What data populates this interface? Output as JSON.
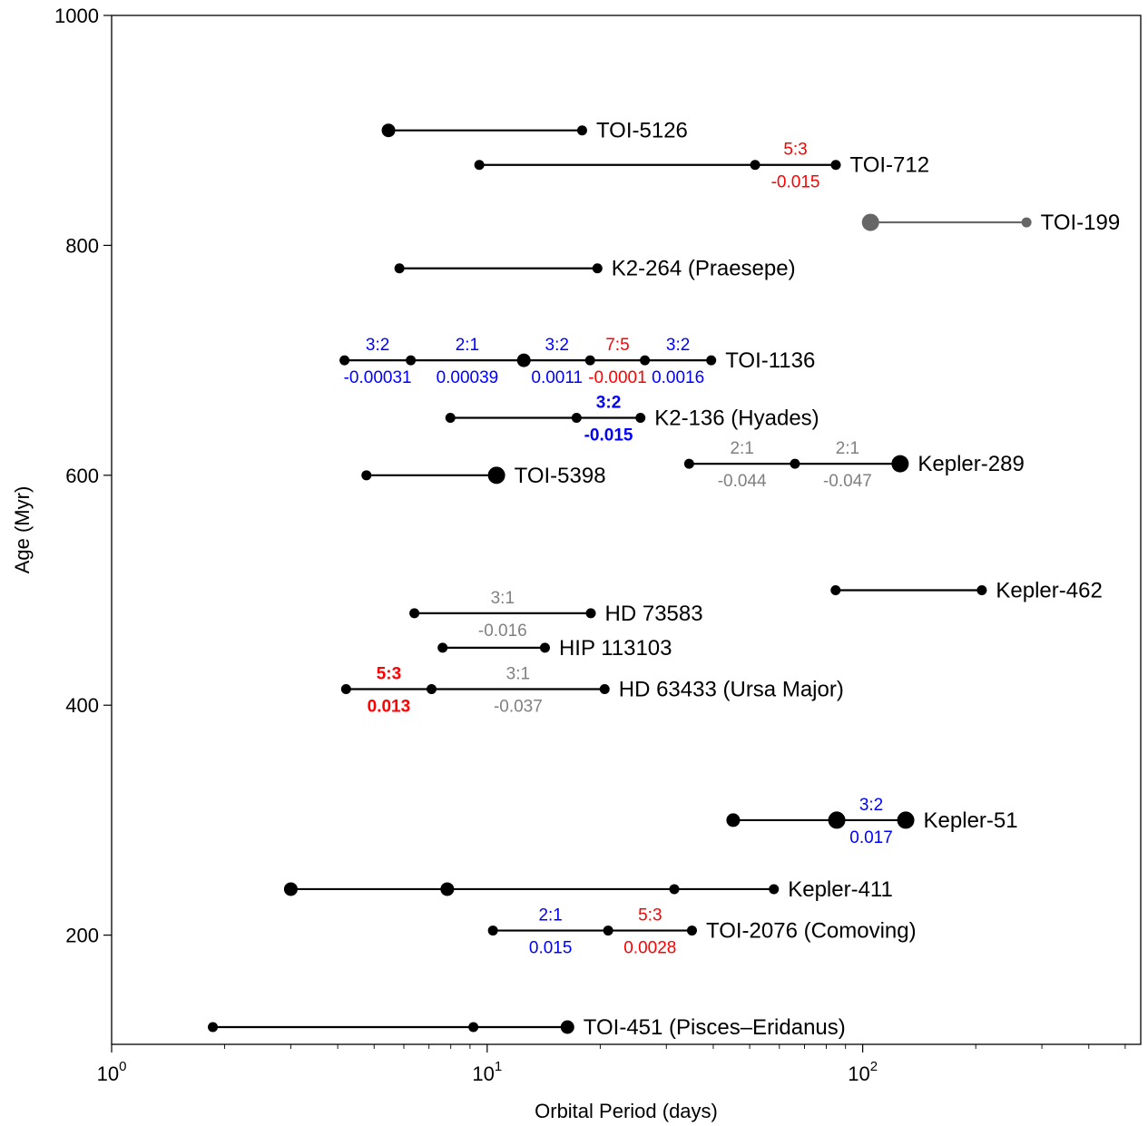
{
  "chart_data": {
    "type": "scatter",
    "title": "",
    "xlabel": "Orbital Period (days)",
    "ylabel": "Age (Myr)",
    "xscale": "log",
    "xlim": [
      1,
      550
    ],
    "ylim": [
      105,
      1000
    ],
    "x_ticks": [
      {
        "value": 1,
        "base": "10",
        "exp": "0"
      },
      {
        "value": 10,
        "base": "10",
        "exp": "1"
      },
      {
        "value": 100,
        "base": "10",
        "exp": "2"
      }
    ],
    "y_ticks": [
      {
        "value": 200,
        "label": "200"
      },
      {
        "value": 400,
        "label": "400"
      },
      {
        "value": 600,
        "label": "600"
      },
      {
        "value": 800,
        "label": "800"
      },
      {
        "value": 1000,
        "label": "1000"
      }
    ],
    "colors": {
      "red": "#ff0000",
      "blue": "#0000ff",
      "gray": "#808080",
      "black": "#000000"
    },
    "systems": [
      {
        "name": "TOI-5126",
        "age": 900,
        "color": "#000000",
        "planets": [
          {
            "period": 5.46,
            "size": "m"
          },
          {
            "period": 17.9,
            "size": "s"
          }
        ],
        "pairs": []
      },
      {
        "name": "TOI-712",
        "age": 870,
        "color": "#000000",
        "planets": [
          {
            "period": 9.53,
            "size": "s"
          },
          {
            "period": 51.7,
            "size": "s"
          },
          {
            "period": 84.8,
            "size": "s"
          }
        ],
        "pairs": [
          {
            "from": 1,
            "to": 2,
            "ratio": "5:3",
            "delta": "-0.015",
            "color": "#ff0000",
            "bold": false
          }
        ]
      },
      {
        "name": "TOI-199",
        "age": 820,
        "color": "#666666",
        "planets": [
          {
            "period": 104.9,
            "size": "l"
          },
          {
            "period": 273,
            "size": "s"
          }
        ],
        "pairs": []
      },
      {
        "name": "K2-264 (Praesepe)",
        "age": 780,
        "color": "#000000",
        "planets": [
          {
            "period": 5.84,
            "size": "s"
          },
          {
            "period": 19.66,
            "size": "s"
          }
        ],
        "pairs": []
      },
      {
        "name": "TOI-1136",
        "age": 700,
        "color": "#000000",
        "planets": [
          {
            "period": 4.17,
            "size": "s"
          },
          {
            "period": 6.26,
            "size": "s"
          },
          {
            "period": 12.52,
            "size": "m"
          },
          {
            "period": 18.8,
            "size": "s"
          },
          {
            "period": 26.3,
            "size": "s"
          },
          {
            "period": 39.5,
            "size": "s"
          }
        ],
        "pairs": [
          {
            "from": 0,
            "to": 1,
            "ratio": "3:2",
            "delta": "-0.00031",
            "color": "#0000ff",
            "bold": false
          },
          {
            "from": 1,
            "to": 2,
            "ratio": "2:1",
            "delta": "0.00039",
            "color": "#0000ff",
            "bold": false
          },
          {
            "from": 2,
            "to": 3,
            "ratio": "3:2",
            "delta": "0.0011",
            "color": "#0000ff",
            "bold": false
          },
          {
            "from": 3,
            "to": 4,
            "ratio": "7:5",
            "delta": "-0.0001",
            "color": "#ff0000",
            "bold": false
          },
          {
            "from": 4,
            "to": 5,
            "ratio": "3:2",
            "delta": "0.0016",
            "color": "#0000ff",
            "bold": false
          }
        ]
      },
      {
        "name": "K2-136 (Hyades)",
        "age": 650,
        "color": "#000000",
        "planets": [
          {
            "period": 7.98,
            "size": "s"
          },
          {
            "period": 17.3,
            "size": "s"
          },
          {
            "period": 25.6,
            "size": "s"
          }
        ],
        "pairs": [
          {
            "from": 1,
            "to": 2,
            "ratio": "3:2",
            "delta": "-0.015",
            "color": "#0000ff",
            "bold": true
          }
        ]
      },
      {
        "name": "TOI-5398",
        "age": 600,
        "color": "#000000",
        "planets": [
          {
            "period": 4.77,
            "size": "s"
          },
          {
            "period": 10.59,
            "size": "l"
          }
        ],
        "pairs": []
      },
      {
        "name": "Kepler-289",
        "age": 610,
        "color": "#000000",
        "planets": [
          {
            "period": 34.5,
            "size": "s"
          },
          {
            "period": 66.0,
            "size": "s"
          },
          {
            "period": 125.8,
            "size": "l"
          }
        ],
        "pairs": [
          {
            "from": 0,
            "to": 1,
            "ratio": "2:1",
            "delta": "-0.044",
            "color": "#808080",
            "bold": false
          },
          {
            "from": 1,
            "to": 2,
            "ratio": "2:1",
            "delta": "-0.047",
            "color": "#808080",
            "bold": false
          }
        ]
      },
      {
        "name": "Kepler-462",
        "age": 500,
        "color": "#000000",
        "planets": [
          {
            "period": 84.7,
            "size": "s"
          },
          {
            "period": 207.6,
            "size": "s"
          }
        ],
        "pairs": []
      },
      {
        "name": "HD 73583",
        "age": 480,
        "color": "#000000",
        "planets": [
          {
            "period": 6.4,
            "size": "s"
          },
          {
            "period": 18.88,
            "size": "s"
          }
        ],
        "pairs": [
          {
            "from": 0,
            "to": 1,
            "ratio": "3:1",
            "delta": "-0.016",
            "color": "#808080",
            "bold": false
          }
        ]
      },
      {
        "name": "HIP 113103",
        "age": 450,
        "color": "#000000",
        "planets": [
          {
            "period": 7.61,
            "size": "s"
          },
          {
            "period": 14.25,
            "size": "s"
          }
        ],
        "pairs": []
      },
      {
        "name": "HD 63433 (Ursa Major)",
        "age": 414,
        "color": "#000000",
        "planets": [
          {
            "period": 4.21,
            "size": "s"
          },
          {
            "period": 7.11,
            "size": "s"
          },
          {
            "period": 20.55,
            "size": "s"
          }
        ],
        "pairs": [
          {
            "from": 0,
            "to": 1,
            "ratio": "5:3",
            "delta": "0.013",
            "color": "#ff0000",
            "bold": true
          },
          {
            "from": 1,
            "to": 2,
            "ratio": "3:1",
            "delta": "-0.037",
            "color": "#808080",
            "bold": false
          }
        ]
      },
      {
        "name": "Kepler-51",
        "age": 300,
        "color": "#000000",
        "planets": [
          {
            "period": 45.2,
            "size": "m"
          },
          {
            "period": 85.3,
            "size": "l"
          },
          {
            "period": 130.2,
            "size": "l"
          }
        ],
        "pairs": [
          {
            "from": 1,
            "to": 2,
            "ratio": "3:2",
            "delta": "0.017",
            "color": "#0000ff",
            "bold": false
          }
        ]
      },
      {
        "name": "Kepler-411",
        "age": 240,
        "color": "#000000",
        "planets": [
          {
            "period": 3.0,
            "size": "m"
          },
          {
            "period": 7.83,
            "size": "m"
          },
          {
            "period": 31.5,
            "size": "s"
          },
          {
            "period": 58.0,
            "size": "s"
          }
        ],
        "pairs": []
      },
      {
        "name": "TOI-2076 (Comoving)",
        "age": 204,
        "color": "#000000",
        "planets": [
          {
            "period": 10.36,
            "size": "s"
          },
          {
            "period": 21.0,
            "size": "s"
          },
          {
            "period": 35.1,
            "size": "s"
          }
        ],
        "pairs": [
          {
            "from": 0,
            "to": 1,
            "ratio": "2:1",
            "delta": "0.015",
            "color": "#0000ff",
            "bold": false
          },
          {
            "from": 1,
            "to": 2,
            "ratio": "5:3",
            "delta": "0.0028",
            "color": "#ff0000",
            "bold": false
          }
        ]
      },
      {
        "name": "TOI-451 (Pisces–Eridanus)",
        "age": 120,
        "color": "#000000",
        "planets": [
          {
            "period": 1.86,
            "size": "s"
          },
          {
            "period": 9.19,
            "size": "s"
          },
          {
            "period": 16.36,
            "size": "m"
          }
        ],
        "pairs": []
      }
    ]
  }
}
